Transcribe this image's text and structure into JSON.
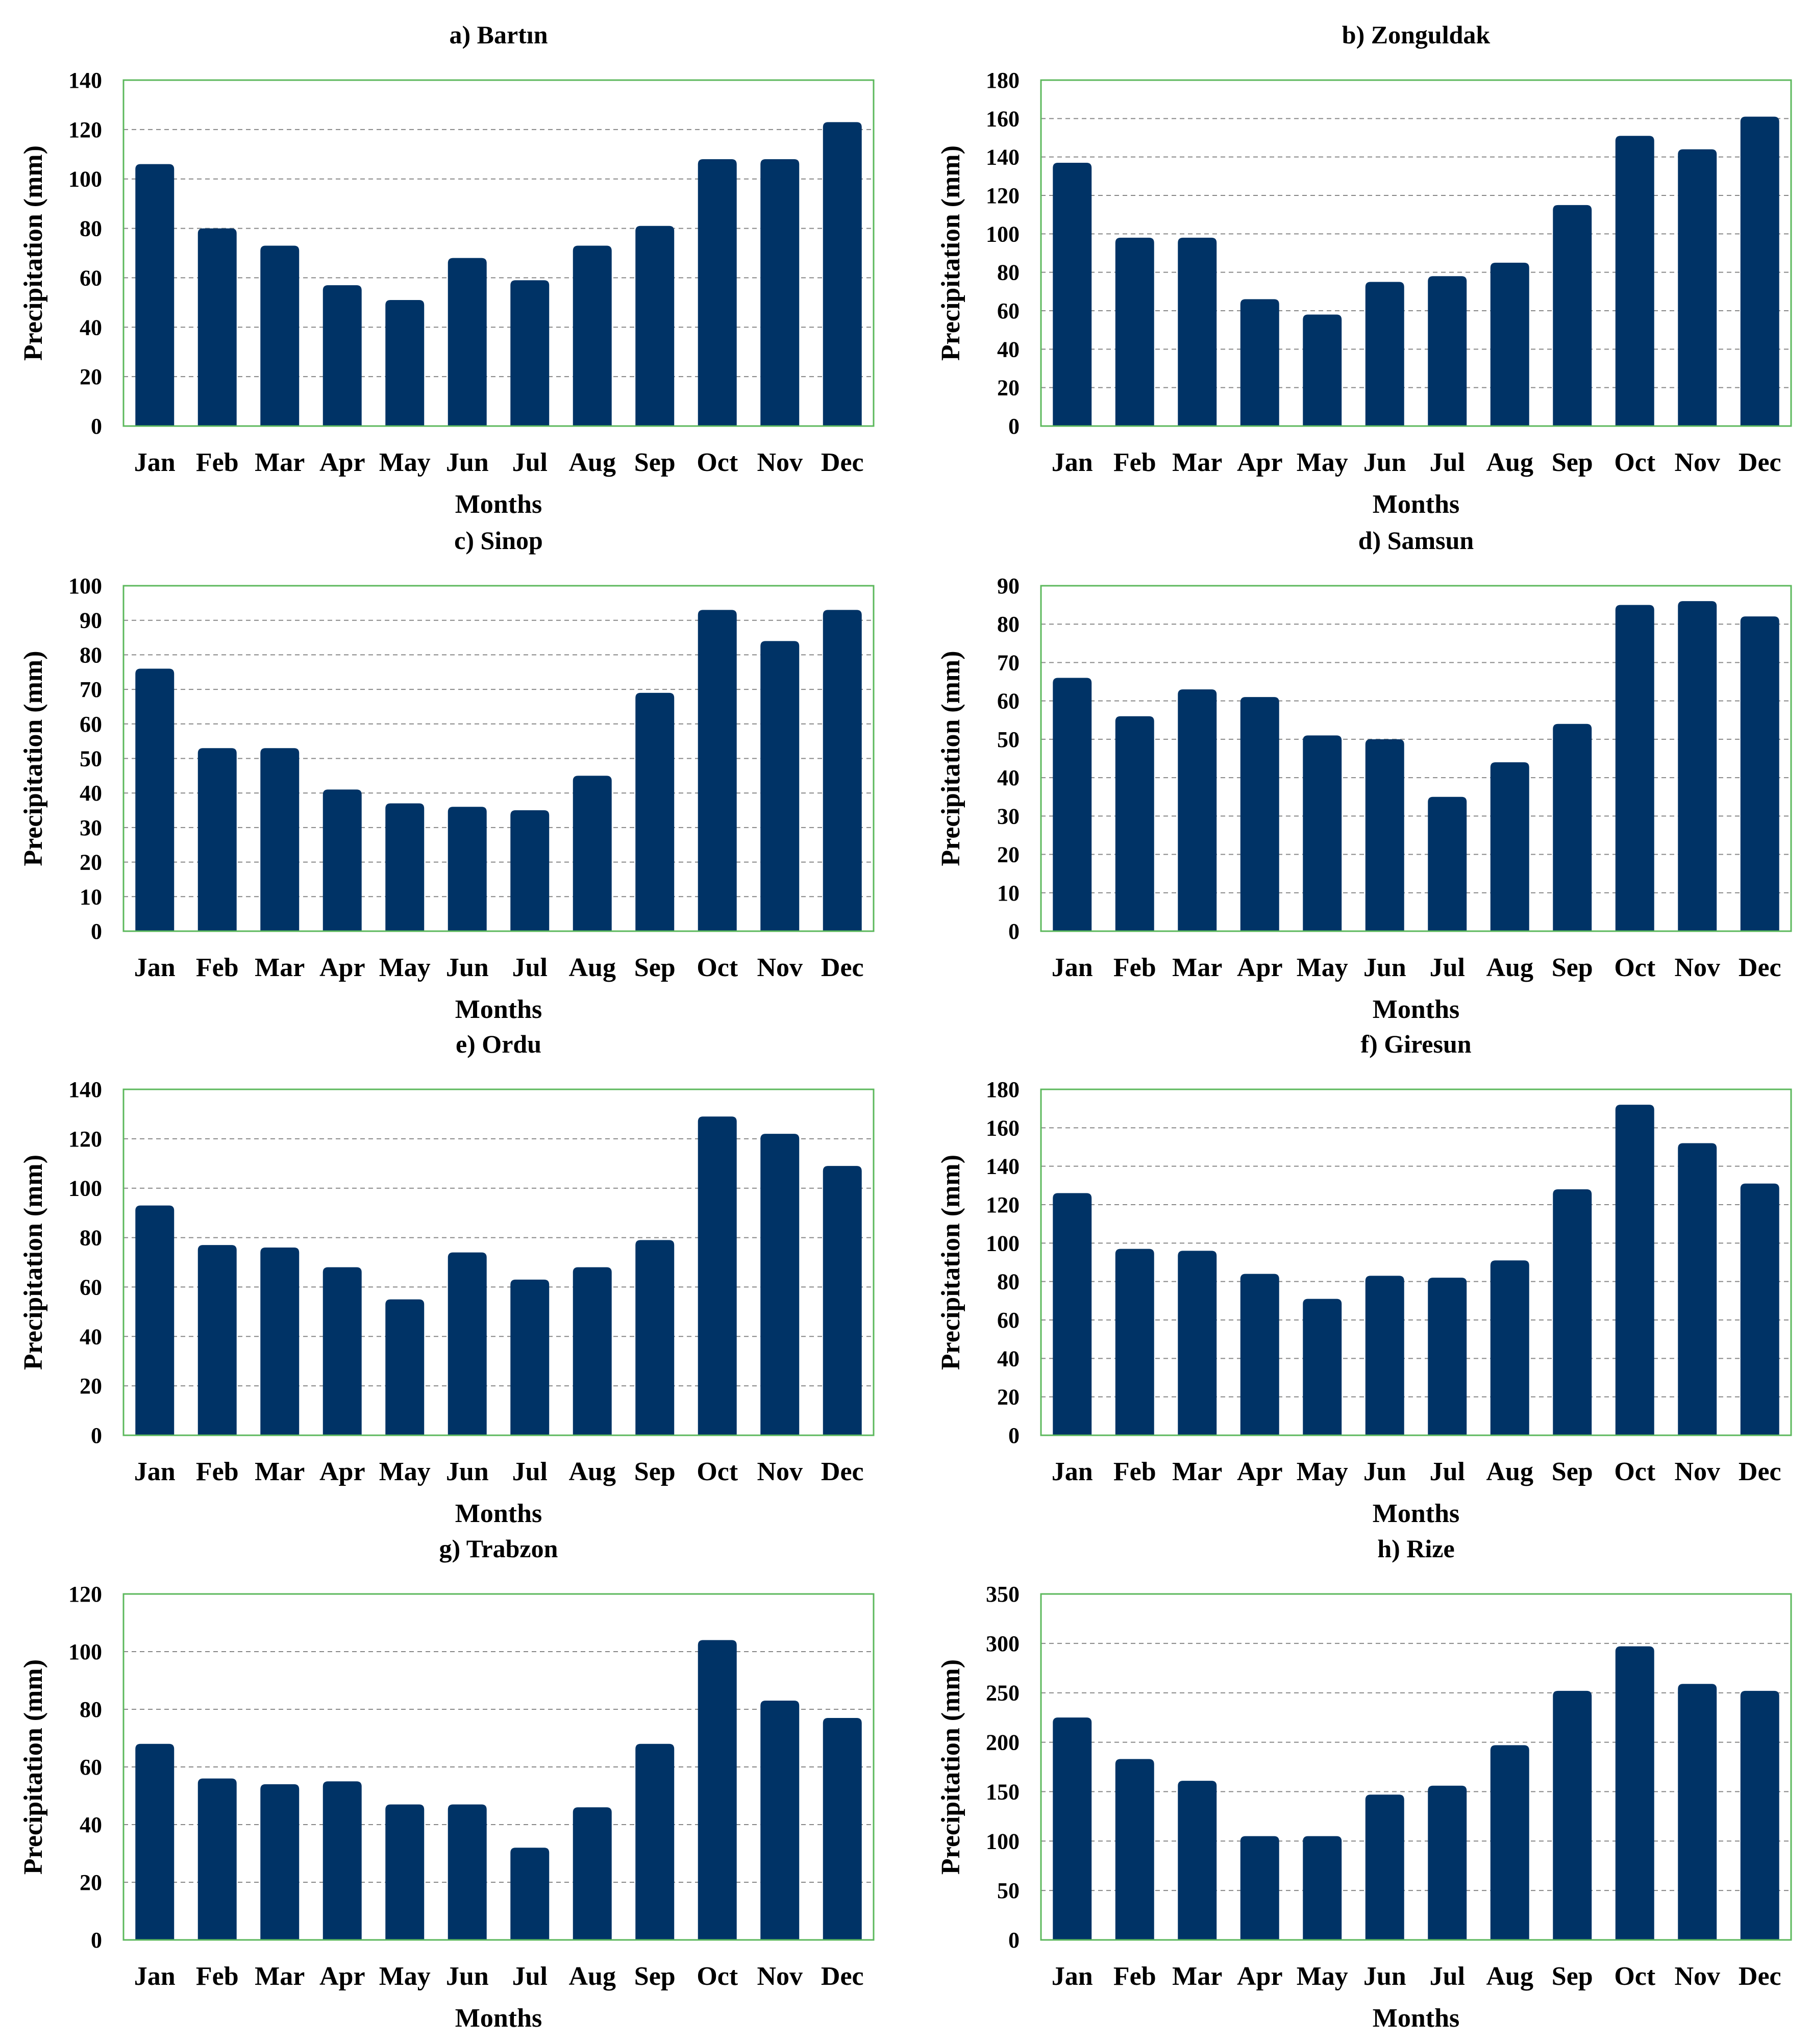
{
  "chart_data": [
    {
      "type": "bar",
      "title": "a) Bartın",
      "xlabel": "Months",
      "ylabel": "Precipitation  (mm)",
      "categories": [
        "Jan",
        "Feb",
        "Mar",
        "Apr",
        "May",
        "Jun",
        "Jul",
        "Aug",
        "Sep",
        "Oct",
        "Nov",
        "Dec"
      ],
      "values": [
        106,
        80,
        73,
        57,
        51,
        68,
        59,
        73,
        81,
        108,
        108,
        123
      ],
      "ylim": [
        0,
        140
      ],
      "yticks": [
        0,
        20,
        40,
        60,
        80,
        100,
        120,
        140
      ],
      "bar_color": "#003366",
      "frame_color": "#5cb85c"
    },
    {
      "type": "bar",
      "title": "b) Zonguldak",
      "xlabel": "Months",
      "ylabel": "Precipitation  (mm)",
      "categories": [
        "Jan",
        "Feb",
        "Mar",
        "Apr",
        "May",
        "Jun",
        "Jul",
        "Aug",
        "Sep",
        "Oct",
        "Nov",
        "Dec"
      ],
      "values": [
        137,
        98,
        98,
        66,
        58,
        75,
        78,
        85,
        115,
        151,
        144,
        161
      ],
      "ylim": [
        0,
        180
      ],
      "yticks": [
        0,
        20,
        40,
        60,
        80,
        100,
        120,
        140,
        160,
        180
      ],
      "bar_color": "#003366",
      "frame_color": "#5cb85c"
    },
    {
      "type": "bar",
      "title": "c) Sinop",
      "xlabel": "Months",
      "ylabel": "Precipitation  (mm)",
      "categories": [
        "Jan",
        "Feb",
        "Mar",
        "Apr",
        "May",
        "Jun",
        "Jul",
        "Aug",
        "Sep",
        "Oct",
        "Nov",
        "Dec"
      ],
      "values": [
        76,
        53,
        53,
        41,
        37,
        36,
        35,
        45,
        69,
        93,
        84,
        93
      ],
      "ylim": [
        0,
        100
      ],
      "yticks": [
        0,
        10,
        20,
        30,
        40,
        50,
        60,
        70,
        80,
        90,
        100
      ],
      "bar_color": "#003366",
      "frame_color": "#5cb85c"
    },
    {
      "type": "bar",
      "title": "d) Samsun",
      "xlabel": "Months",
      "ylabel": "Precipitation  (mm)",
      "categories": [
        "Jan",
        "Feb",
        "Mar",
        "Apr",
        "May",
        "Jun",
        "Jul",
        "Aug",
        "Sep",
        "Oct",
        "Nov",
        "Dec"
      ],
      "values": [
        66,
        56,
        63,
        61,
        51,
        50,
        35,
        44,
        54,
        85,
        86,
        82
      ],
      "ylim": [
        0,
        90
      ],
      "yticks": [
        0,
        10,
        20,
        30,
        40,
        50,
        60,
        70,
        80,
        90
      ],
      "bar_color": "#003366",
      "frame_color": "#5cb85c"
    },
    {
      "type": "bar",
      "title": "e) Ordu",
      "xlabel": "Months",
      "ylabel": "Precipitation  (mm)",
      "categories": [
        "Jan",
        "Feb",
        "Mar",
        "Apr",
        "May",
        "Jun",
        "Jul",
        "Aug",
        "Sep",
        "Oct",
        "Nov",
        "Dec"
      ],
      "values": [
        93,
        77,
        76,
        68,
        55,
        74,
        63,
        68,
        79,
        129,
        122,
        109
      ],
      "ylim": [
        0,
        140
      ],
      "yticks": [
        0,
        20,
        40,
        60,
        80,
        100,
        120,
        140
      ],
      "bar_color": "#003366",
      "frame_color": "#5cb85c"
    },
    {
      "type": "bar",
      "title": "f) Giresun",
      "xlabel": "Months",
      "ylabel": "Precipitation  (mm)",
      "categories": [
        "Jan",
        "Feb",
        "Mar",
        "Apr",
        "May",
        "Jun",
        "Jul",
        "Aug",
        "Sep",
        "Oct",
        "Nov",
        "Dec"
      ],
      "values": [
        126,
        97,
        96,
        84,
        71,
        83,
        82,
        91,
        128,
        172,
        152,
        131
      ],
      "ylim": [
        0,
        180
      ],
      "yticks": [
        0,
        20,
        40,
        60,
        80,
        100,
        120,
        140,
        160,
        180
      ],
      "bar_color": "#003366",
      "frame_color": "#5cb85c"
    },
    {
      "type": "bar",
      "title": "g) Trabzon",
      "xlabel": "Months",
      "ylabel": "Precipitation  (mm)",
      "categories": [
        "Jan",
        "Feb",
        "Mar",
        "Apr",
        "May",
        "Jun",
        "Jul",
        "Aug",
        "Sep",
        "Oct",
        "Nov",
        "Dec"
      ],
      "values": [
        68,
        56,
        54,
        55,
        47,
        47,
        32,
        46,
        68,
        104,
        83,
        77
      ],
      "ylim": [
        0,
        120
      ],
      "yticks": [
        0,
        20,
        40,
        60,
        80,
        100,
        120
      ],
      "bar_color": "#003366",
      "frame_color": "#5cb85c"
    },
    {
      "type": "bar",
      "title": "h) Rize",
      "xlabel": "Months",
      "ylabel": "Precipitation  (mm)",
      "categories": [
        "Jan",
        "Feb",
        "Mar",
        "Apr",
        "May",
        "Jun",
        "Jul",
        "Aug",
        "Sep",
        "Oct",
        "Nov",
        "Dec"
      ],
      "values": [
        225,
        183,
        161,
        105,
        105,
        147,
        156,
        197,
        252,
        297,
        259,
        252
      ],
      "ylim": [
        0,
        350
      ],
      "yticks": [
        0,
        50,
        100,
        150,
        200,
        250,
        300,
        350
      ],
      "bar_color": "#003366",
      "frame_color": "#5cb85c"
    }
  ]
}
